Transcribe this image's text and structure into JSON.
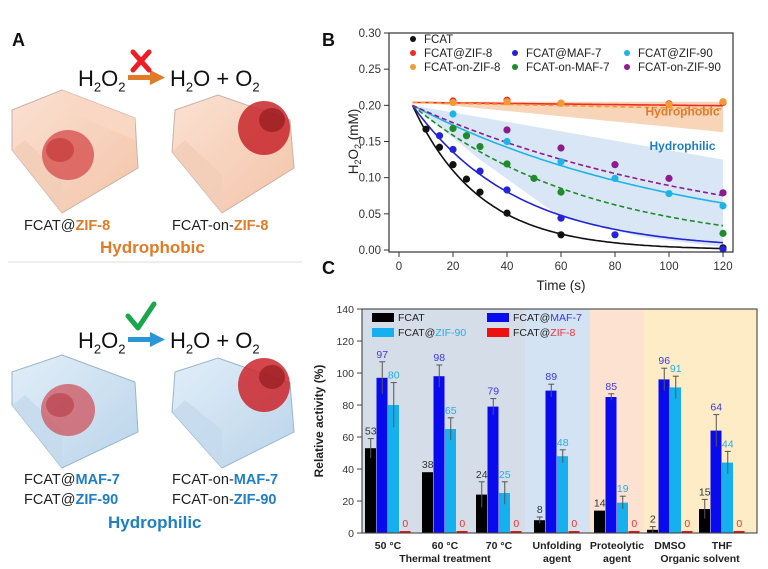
{
  "panelA": {
    "letter": "A",
    "colors": {
      "hydrophobic": "#e07b28",
      "hydrophilic": "#1f7fc4",
      "cross": "#ee1c24",
      "check": "#1aa64a"
    },
    "top": {
      "reactant": "H2O2",
      "products": "H2O + O2",
      "status": "blocked",
      "left_label_prefix": "FCAT@",
      "left_label_mof": "ZIF-8",
      "right_label_prefix": "FCAT-on-",
      "right_label_mof": "ZIF-8",
      "category": "Hydrophobic"
    },
    "bottom": {
      "reactant": "H2O2",
      "products": "H2O + O2",
      "status": "allowed",
      "left_labels": [
        {
          "prefix": "FCAT@",
          "mof": "MAF-7"
        },
        {
          "prefix": "FCAT@",
          "mof": "ZIF-90"
        }
      ],
      "right_labels": [
        {
          "prefix": "FCAT-on-",
          "mof": "MAF-7"
        },
        {
          "prefix": "FCAT-on-",
          "mof": "ZIF-90"
        }
      ],
      "category": "Hydrophilic"
    }
  },
  "chart_data": [
    {
      "panel": "B",
      "type": "scatter",
      "title": "",
      "xlabel": "Time (s)",
      "ylabel": "H2O2 (mM)",
      "xlim": [
        0,
        120
      ],
      "ylim": [
        0,
        0.3
      ],
      "xticks": [
        0,
        20,
        40,
        60,
        80,
        100,
        120
      ],
      "yticks": [
        "0.00",
        "0.05",
        "0.10",
        "0.15",
        "0.20",
        "0.25",
        "0.30"
      ],
      "legend_position": "top",
      "annotations": [
        {
          "text": "Hydrophobic",
          "color": "#e07b28",
          "x": 105,
          "y": 0.186
        },
        {
          "text": "Hydrophilic",
          "color": "#1f7fc4",
          "x": 105,
          "y": 0.138
        }
      ],
      "bands": [
        {
          "name": "Hydrophobic",
          "color": "#f6c9a6",
          "upper": [
            [
              5,
              0.205
            ],
            [
              120,
              0.205
            ]
          ],
          "lower": [
            [
              5,
              0.205
            ],
            [
              120,
              0.163
            ]
          ]
        },
        {
          "name": "Hydrophilic",
          "color": "#cfe0f3",
          "upper": [
            [
              5,
              0.2
            ],
            [
              120,
              0.125
            ]
          ],
          "lower": [
            [
              5,
              0.2
            ],
            [
              30,
              0.125
            ],
            [
              60,
              0.045
            ],
            [
              90,
              0.018
            ],
            [
              120,
              0.004
            ]
          ]
        }
      ],
      "series": [
        {
          "name": "FCAT",
          "color": "#111111",
          "dashed": false,
          "x": [
            10,
            15,
            20,
            25,
            30,
            40,
            60,
            120
          ],
          "y": [
            0.167,
            0.142,
            0.118,
            0.098,
            0.08,
            0.051,
            0.021,
            0.003
          ],
          "k": 0.04
        },
        {
          "name": "FCAT@ZIF-8",
          "color": "#ee2b24",
          "dashed": false,
          "x": [
            20,
            40,
            60,
            100,
            120
          ],
          "y": [
            0.206,
            0.207,
            0.203,
            0.202,
            0.204
          ],
          "k": 0.0002
        },
        {
          "name": "FCAT-on-ZIF-8",
          "color": "#f39a33",
          "dashed": true,
          "x": [
            20,
            40,
            60,
            100,
            120
          ],
          "y": [
            0.204,
            0.205,
            0.203,
            0.201,
            0.205
          ],
          "k": 0.0004
        },
        {
          "name": "FCAT@MAF-7",
          "color": "#2323d8",
          "dashed": false,
          "x": [
            15,
            20,
            30,
            40,
            60,
            80,
            120
          ],
          "y": [
            0.158,
            0.139,
            0.109,
            0.083,
            0.044,
            0.021,
            0.001
          ],
          "k": 0.026
        },
        {
          "name": "FCAT-on-MAF-7",
          "color": "#1f8c2b",
          "dashed": true,
          "x": [
            20,
            25,
            30,
            40,
            50,
            60,
            120
          ],
          "y": [
            0.168,
            0.158,
            0.143,
            0.119,
            0.099,
            0.08,
            0.023
          ],
          "k": 0.0155
        },
        {
          "name": "FCAT@ZIF-90",
          "color": "#1fb4e6",
          "dashed": false,
          "x": [
            20,
            40,
            60,
            80,
            100,
            120
          ],
          "y": [
            0.188,
            0.15,
            0.122,
            0.099,
            0.078,
            0.061
          ],
          "k": 0.0098
        },
        {
          "name": "FCAT-on-ZIF-90",
          "color": "#8e1c8e",
          "dashed": true,
          "x": [
            40,
            60,
            80,
            100,
            120
          ],
          "y": [
            0.166,
            0.141,
            0.118,
            0.099,
            0.079
          ],
          "k": 0.0085
        }
      ]
    },
    {
      "panel": "C",
      "type": "bar",
      "title": "",
      "xlabel": "",
      "ylabel": "Relative activity (%)",
      "ylim": [
        0,
        140
      ],
      "yticks": [
        0,
        20,
        40,
        60,
        80,
        100,
        120,
        140
      ],
      "legend_position": "top-left",
      "categories": [
        "50 °C",
        "60 °C",
        "70 °C",
        "Unfolding agent",
        "Proteolytic agent",
        "DMSO",
        "THF"
      ],
      "category_lines": [
        [
          "50 °C"
        ],
        [
          "60 °C"
        ],
        [
          "70 °C"
        ],
        [
          "Unfolding",
          "agent"
        ],
        [
          "Proteolytic",
          "agent"
        ],
        [
          "DMSO"
        ],
        [
          "THF"
        ]
      ],
      "groups": [
        {
          "label": "Thermal treatment",
          "from": 0,
          "to": 2,
          "bg": "#d5dde8"
        },
        {
          "label": "",
          "from": 3,
          "to": 3,
          "bg": "#d3e3f3"
        },
        {
          "label": "",
          "from": 4,
          "to": 4,
          "bg": "#fde2d2"
        },
        {
          "label": "Organic solvent",
          "from": 5,
          "to": 6,
          "bg": "#fdecc6"
        }
      ],
      "series": [
        {
          "name": "FCAT",
          "prefix": "FCAT",
          "mof": "",
          "color": "#000000",
          "label_color": "#333333",
          "values": [
            53,
            38,
            24,
            8,
            14,
            2,
            15
          ],
          "errors": [
            6,
            0,
            8,
            2,
            0,
            2,
            6
          ]
        },
        {
          "name": "FCAT@MAF-7",
          "prefix": "FCAT@",
          "mof": "MAF-7",
          "color": "#0a0aee",
          "label_color": "#3a3ae0",
          "values": [
            97,
            98,
            79,
            89,
            85,
            96,
            64
          ],
          "errors": [
            10,
            7,
            5,
            4,
            2,
            7,
            10
          ]
        },
        {
          "name": "FCAT@ZIF-90",
          "prefix": "FCAT@",
          "mof": "ZIF-90",
          "color": "#16b0ee",
          "label_color": "#23aee6",
          "values": [
            80,
            65,
            25,
            48,
            19,
            91,
            44
          ],
          "errors": [
            14,
            7,
            7,
            4,
            4,
            7,
            7
          ]
        },
        {
          "name": "FCAT@ZIF-8",
          "prefix": "FCAT@",
          "mof": "ZIF-8",
          "color": "#ee1111",
          "label_color": "#ee3333",
          "values": [
            0,
            0,
            0,
            0,
            0,
            0,
            0
          ],
          "errors": [
            0,
            0,
            0,
            0,
            0,
            0,
            0
          ]
        }
      ]
    }
  ]
}
